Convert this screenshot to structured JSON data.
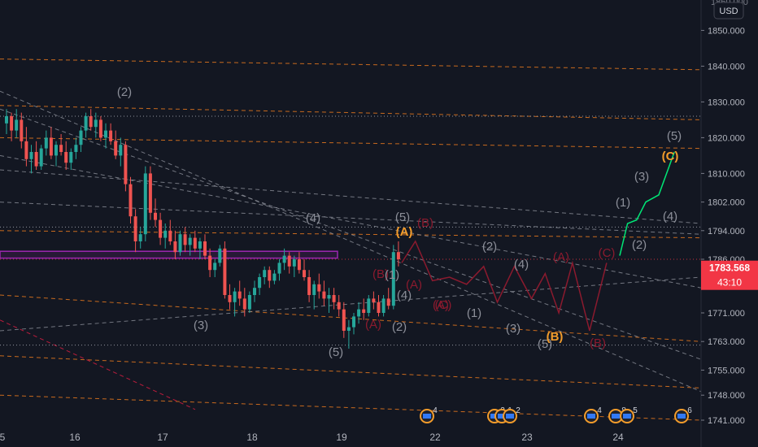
{
  "chart_data": {
    "type": "candlestick",
    "currency": "USD",
    "x_ticks": [
      "5",
      "16",
      "17",
      "18",
      "19",
      "22",
      "23",
      "24"
    ],
    "y_ticks": [
      1850.0,
      1840.0,
      1830.0,
      1820.0,
      1810.0,
      1802.0,
      1794.0,
      1786.0,
      1779.0,
      1771.0,
      1763.0,
      1755.0,
      1748.0,
      1741.0
    ],
    "y_range": [
      1738.5,
      1858.5
    ],
    "top_partial_tick": "1860.000",
    "current_price": "1783.568",
    "countdown": "43:10",
    "grid": false,
    "colors": {
      "background": "#131722",
      "up": "#26a69a",
      "down": "#ef5350",
      "price_tag": "#f23645",
      "fib_line": "#c86a1e",
      "trend_line": "#8c8f99",
      "wave_gray": "#8c8f99",
      "wave_orange": "#f39c2b",
      "wave_red": "#8b1a2e",
      "projection_green": "#00e676",
      "zone_purple": "#9c27b0"
    },
    "wave_labels": [
      {
        "text": "(2)",
        "color": "gray"
      },
      {
        "text": "(3)",
        "color": "gray"
      },
      {
        "text": "(4)",
        "color": "gray"
      },
      {
        "text": "(5)",
        "color": "gray"
      },
      {
        "text": "(A)",
        "color": "orange"
      },
      {
        "text": "(B)",
        "color": "red"
      },
      {
        "text": "(A)",
        "color": "red"
      },
      {
        "text": "(1)",
        "color": "gray"
      },
      {
        "text": "(4)",
        "color": "gray"
      },
      {
        "text": "(2)",
        "color": "gray"
      },
      {
        "text": "(A)",
        "color": "red"
      },
      {
        "text": "(5)",
        "color": "gray"
      },
      {
        "text": "(B)",
        "color": "red"
      },
      {
        "text": "(A)",
        "color": "red"
      },
      {
        "text": "(C)",
        "color": "red"
      },
      {
        "text": "(2)",
        "color": "gray"
      },
      {
        "text": "(1)",
        "color": "gray"
      },
      {
        "text": "(4)",
        "color": "gray"
      },
      {
        "text": "(3)",
        "color": "gray"
      },
      {
        "text": "(A)",
        "color": "red"
      },
      {
        "text": "(5)",
        "color": "gray"
      },
      {
        "text": "(B)",
        "color": "orange"
      },
      {
        "text": "(B)",
        "color": "red"
      },
      {
        "text": "(C)",
        "color": "red"
      },
      {
        "text": "(2)",
        "color": "gray"
      },
      {
        "text": "(1)",
        "color": "gray"
      },
      {
        "text": "(3)",
        "color": "gray"
      },
      {
        "text": "(4)",
        "color": "gray"
      },
      {
        "text": "(5)",
        "color": "gray"
      },
      {
        "text": "(C)",
        "color": "orange"
      }
    ],
    "event_markers": [
      {
        "count": "4"
      },
      {
        "count": "2"
      },
      {
        "count": "1"
      },
      {
        "count": "2"
      },
      {
        "count": "4"
      },
      {
        "count": "8"
      },
      {
        "count": "5"
      },
      {
        "count": "6"
      }
    ],
    "candles": [
      [
        1824,
        1828,
        1821,
        1826
      ],
      [
        1826,
        1827,
        1819,
        1822
      ],
      [
        1822,
        1828,
        1820,
        1825
      ],
      [
        1825,
        1827,
        1817,
        1819
      ],
      [
        1819,
        1823,
        1812,
        1814
      ],
      [
        1814,
        1818,
        1810,
        1816
      ],
      [
        1816,
        1819,
        1811,
        1812
      ],
      [
        1812,
        1818,
        1811,
        1817
      ],
      [
        1817,
        1822,
        1815,
        1820
      ],
      [
        1820,
        1823,
        1814,
        1815
      ],
      [
        1815,
        1819,
        1812,
        1818
      ],
      [
        1818,
        1821,
        1815,
        1816
      ],
      [
        1816,
        1819,
        1811,
        1813
      ],
      [
        1813,
        1817,
        1811,
        1816
      ],
      [
        1816,
        1820,
        1814,
        1818
      ],
      [
        1818,
        1823,
        1816,
        1822
      ],
      [
        1822,
        1827,
        1820,
        1826
      ],
      [
        1826,
        1828,
        1822,
        1823
      ],
      [
        1823,
        1827,
        1820,
        1825
      ],
      [
        1825,
        1826,
        1819,
        1820
      ],
      [
        1820,
        1824,
        1817,
        1822
      ],
      [
        1822,
        1824,
        1818,
        1819
      ],
      [
        1819,
        1822,
        1814,
        1815
      ],
      [
        1815,
        1820,
        1812,
        1818
      ],
      [
        1818,
        1819,
        1805,
        1807
      ],
      [
        1807,
        1809,
        1796,
        1798
      ],
      [
        1798,
        1800,
        1788,
        1791
      ],
      [
        1791,
        1795,
        1789,
        1793
      ],
      [
        1793,
        1812,
        1791,
        1810
      ],
      [
        1810,
        1812,
        1797,
        1799
      ],
      [
        1799,
        1803,
        1795,
        1797
      ],
      [
        1797,
        1799,
        1790,
        1792
      ],
      [
        1792,
        1796,
        1789,
        1794
      ],
      [
        1794,
        1797,
        1790,
        1791
      ],
      [
        1791,
        1794,
        1786,
        1788
      ],
      [
        1788,
        1794,
        1787,
        1793
      ],
      [
        1793,
        1795,
        1788,
        1790
      ],
      [
        1790,
        1793,
        1787,
        1792
      ],
      [
        1792,
        1794,
        1788,
        1789
      ],
      [
        1789,
        1792,
        1786,
        1791
      ],
      [
        1791,
        1793,
        1786,
        1787
      ],
      [
        1787,
        1789,
        1781,
        1783
      ],
      [
        1783,
        1786,
        1781,
        1785
      ],
      [
        1785,
        1790,
        1784,
        1789
      ],
      [
        1789,
        1791,
        1775,
        1776
      ],
      [
        1776,
        1779,
        1772,
        1774
      ],
      [
        1774,
        1778,
        1770,
        1777
      ],
      [
        1777,
        1780,
        1773,
        1775
      ],
      [
        1775,
        1778,
        1770,
        1772
      ],
      [
        1772,
        1777,
        1771,
        1776
      ],
      [
        1776,
        1780,
        1774,
        1778
      ],
      [
        1778,
        1782,
        1776,
        1781
      ],
      [
        1781,
        1784,
        1779,
        1783
      ],
      [
        1783,
        1784,
        1778,
        1780
      ],
      [
        1780,
        1783,
        1779,
        1782
      ],
      [
        1782,
        1786,
        1780,
        1785
      ],
      [
        1785,
        1789,
        1783,
        1787
      ],
      [
        1787,
        1788,
        1782,
        1784
      ],
      [
        1784,
        1787,
        1781,
        1786
      ],
      [
        1786,
        1788,
        1782,
        1783
      ],
      [
        1783,
        1786,
        1780,
        1781
      ],
      [
        1781,
        1783,
        1774,
        1776
      ],
      [
        1776,
        1780,
        1772,
        1779
      ],
      [
        1779,
        1782,
        1775,
        1777
      ],
      [
        1777,
        1780,
        1773,
        1775
      ],
      [
        1775,
        1778,
        1771,
        1776
      ],
      [
        1776,
        1778,
        1772,
        1774
      ],
      [
        1774,
        1776,
        1770,
        1772
      ],
      [
        1772,
        1774,
        1764,
        1766
      ],
      [
        1766,
        1769,
        1761,
        1767
      ],
      [
        1767,
        1771,
        1765,
        1770
      ],
      [
        1770,
        1774,
        1768,
        1772
      ],
      [
        1772,
        1775,
        1769,
        1771
      ],
      [
        1771,
        1776,
        1770,
        1775
      ],
      [
        1775,
        1777,
        1772,
        1774
      ],
      [
        1774,
        1776,
        1770,
        1771
      ],
      [
        1771,
        1776,
        1770,
        1775
      ],
      [
        1775,
        1778,
        1772,
        1773
      ],
      [
        1773,
        1790,
        1772,
        1788
      ],
      [
        1788,
        1791,
        1784,
        1786
      ]
    ],
    "fib_levels": [
      [
        1842,
        1839
      ],
      [
        1829,
        1825
      ],
      [
        1820,
        1817
      ],
      [
        1794,
        1792
      ],
      [
        1776,
        1763
      ],
      [
        1759,
        1750
      ],
      [
        1748,
        1741
      ]
    ],
    "trend_lines": [
      [
        1833,
        1749
      ],
      [
        1828,
        1758
      ],
      [
        1815,
        1778
      ],
      [
        1811,
        1796
      ],
      [
        1802,
        1793
      ],
      [
        1766,
        1781
      ]
    ],
    "horizontal_levels": [
      1826,
      1795,
      1786,
      1762
    ],
    "zone": [
      1788,
      1787
    ],
    "orange_path": [
      [
        0,
        1776
      ],
      [
        0.2,
        1773
      ],
      [
        0.45,
        1769
      ],
      [
        0.72,
        1764
      ],
      [
        0.86,
        1762
      ]
    ],
    "red_projection": [
      [
        0,
        1785
      ],
      [
        0.04,
        1791
      ],
      [
        0.09,
        1780
      ],
      [
        0.14,
        1781
      ],
      [
        0.19,
        1779
      ],
      [
        0.24,
        1784
      ],
      [
        0.28,
        1774
      ],
      [
        0.33,
        1784
      ],
      [
        0.38,
        1775
      ],
      [
        0.42,
        1782
      ],
      [
        0.46,
        1771
      ],
      [
        0.5,
        1785
      ],
      [
        0.55,
        1766
      ],
      [
        0.6,
        1785
      ]
    ],
    "green_projection": [
      [
        0,
        1787
      ],
      [
        0.06,
        1796
      ],
      [
        0.13,
        1797
      ],
      [
        0.2,
        1802
      ],
      [
        0.3,
        1804
      ],
      [
        0.42,
        1816
      ]
    ]
  }
}
